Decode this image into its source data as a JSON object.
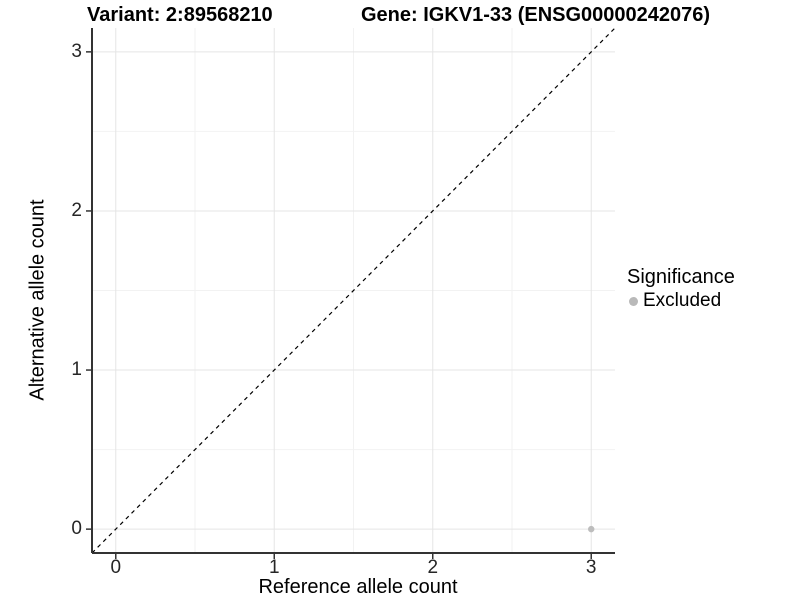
{
  "chart_data": {
    "type": "scatter",
    "titles": {
      "left": "Variant: 2:89568210",
      "right": "Gene: IGKV1-33 (ENSG00000242076)"
    },
    "xlabel": "Reference allele count",
    "ylabel": "Alternative allele count",
    "xlim": [
      -0.15,
      3.15
    ],
    "ylim": [
      -0.15,
      3.15
    ],
    "x_ticks": [
      0,
      1,
      2,
      3
    ],
    "y_ticks": [
      0,
      1,
      2,
      3
    ],
    "x_minor_ticks": [
      0.5,
      1.5,
      2.5
    ],
    "y_minor_ticks": [
      0.5,
      1.5,
      2.5
    ],
    "grid": true,
    "series": [
      {
        "name": "Excluded",
        "color": "#bdbdbd",
        "marker": "circle",
        "point_radius": 3.2,
        "points": [
          {
            "x": 3,
            "y": 0
          }
        ]
      }
    ],
    "reference_line": {
      "slope": 1,
      "intercept": 0,
      "linetype": "dashed",
      "color": "#000000"
    },
    "legend": {
      "title": "Significance",
      "position": "right",
      "items": [
        {
          "label": "Excluded",
          "color": "#b9b9b9",
          "marker": "circle"
        }
      ]
    },
    "colors": {
      "background": "#ffffff",
      "grid_major": "#e5e5e5",
      "grid_minor": "#f2f2f2",
      "axis": "#333333",
      "tick_labels": "#262626",
      "titles": "#000000"
    }
  }
}
